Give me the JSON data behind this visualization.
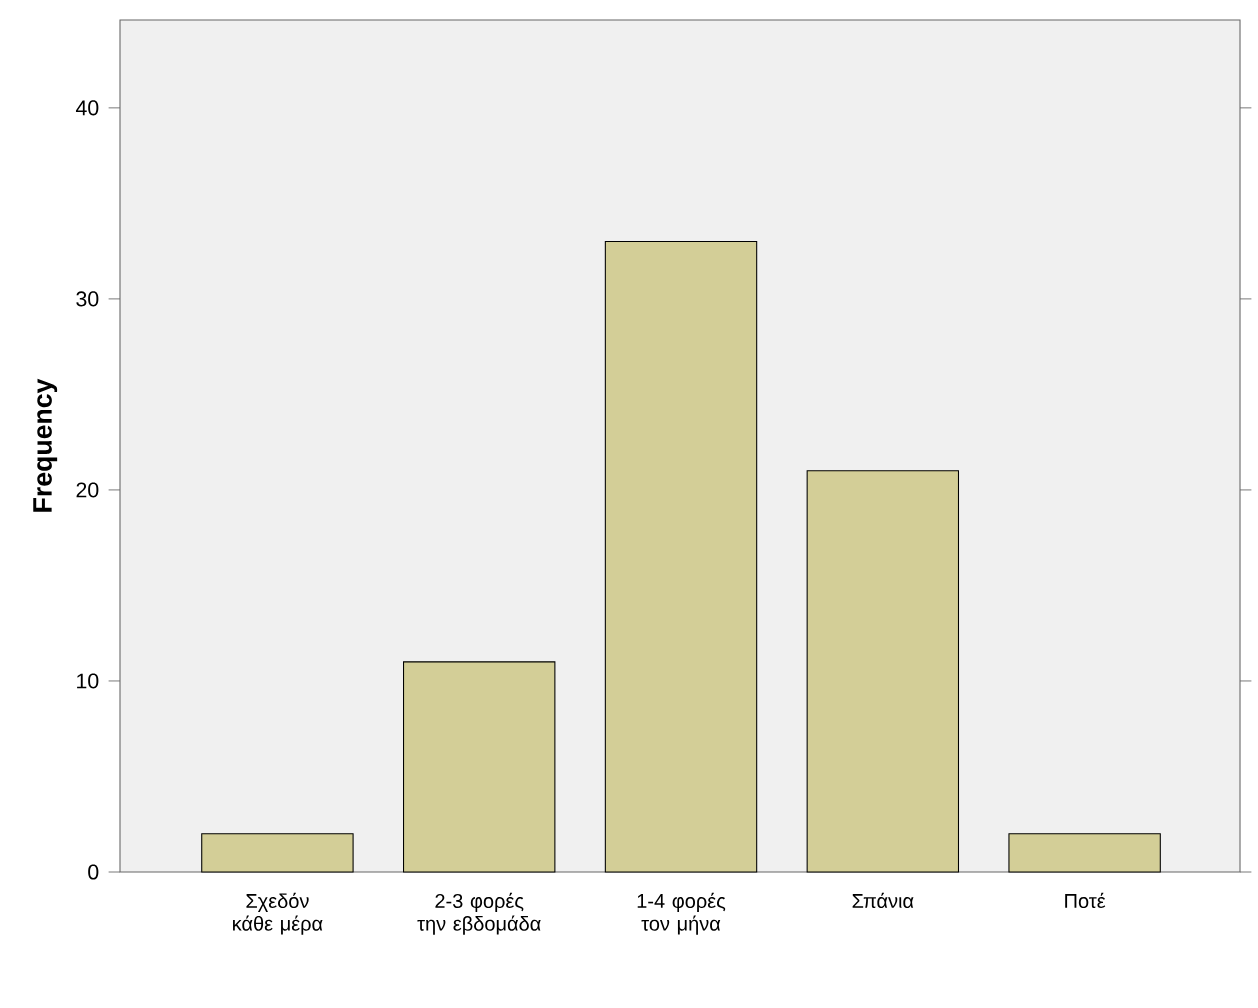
{
  "chart_data": {
    "type": "bar",
    "ylabel": "Frequency",
    "categories": [
      "Σχεδόν κάθε μέρα",
      "2-3 φορές την εβδομάδα",
      "1-4 φορές τον μήνα",
      "Σπάνια",
      "Ποτέ"
    ],
    "values": [
      2,
      11,
      33,
      21,
      2
    ],
    "color": "#d3ce97",
    "ylim": [
      0,
      44.6
    ],
    "yticks": [
      0,
      10,
      20,
      30,
      40
    ],
    "grid": false
  }
}
